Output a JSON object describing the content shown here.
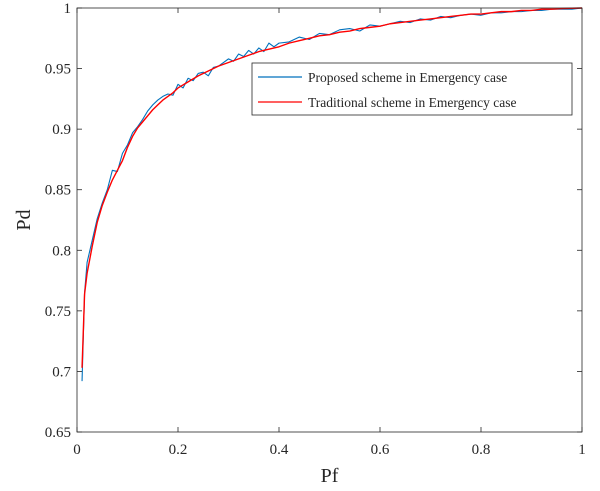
{
  "chart_data": {
    "type": "line",
    "xlabel": "Pf",
    "ylabel": "Pd",
    "xlim": [
      0,
      1
    ],
    "ylim": [
      0.65,
      1
    ],
    "xticks": [
      0,
      0.2,
      0.4,
      0.6,
      0.8,
      1
    ],
    "xtick_labels": [
      "0",
      "0.2",
      "0.4",
      "0.6",
      "0.8",
      "1"
    ],
    "yticks": [
      0.65,
      0.7,
      0.75,
      0.8,
      0.85,
      0.9,
      0.95,
      1
    ],
    "ytick_labels": [
      "0.65",
      "0.7",
      "0.75",
      "0.8",
      "0.85",
      "0.9",
      "0.95",
      "1"
    ],
    "grid": false,
    "legend_position": "top-right",
    "series": [
      {
        "name": "Proposed scheme in Emergency case",
        "color": "#0072BD",
        "x": [
          0.01,
          0.015,
          0.02,
          0.03,
          0.04,
          0.05,
          0.06,
          0.07,
          0.08,
          0.09,
          0.1,
          0.11,
          0.12,
          0.13,
          0.14,
          0.15,
          0.16,
          0.17,
          0.18,
          0.19,
          0.2,
          0.21,
          0.22,
          0.23,
          0.24,
          0.25,
          0.26,
          0.27,
          0.28,
          0.29,
          0.3,
          0.31,
          0.32,
          0.33,
          0.34,
          0.35,
          0.36,
          0.37,
          0.38,
          0.39,
          0.4,
          0.42,
          0.44,
          0.46,
          0.48,
          0.5,
          0.52,
          0.54,
          0.56,
          0.58,
          0.6,
          0.62,
          0.64,
          0.66,
          0.68,
          0.7,
          0.72,
          0.74,
          0.76,
          0.78,
          0.8,
          0.82,
          0.84,
          0.86,
          0.88,
          0.9,
          0.92,
          0.94,
          0.96,
          0.98,
          1.0
        ],
        "y": [
          0.692,
          0.765,
          0.79,
          0.808,
          0.826,
          0.839,
          0.85,
          0.866,
          0.865,
          0.88,
          0.887,
          0.897,
          0.902,
          0.908,
          0.915,
          0.92,
          0.924,
          0.927,
          0.929,
          0.928,
          0.937,
          0.934,
          0.942,
          0.94,
          0.946,
          0.947,
          0.944,
          0.951,
          0.952,
          0.955,
          0.958,
          0.956,
          0.962,
          0.96,
          0.965,
          0.962,
          0.967,
          0.964,
          0.971,
          0.968,
          0.971,
          0.972,
          0.976,
          0.974,
          0.979,
          0.978,
          0.982,
          0.983,
          0.981,
          0.986,
          0.985,
          0.987,
          0.989,
          0.988,
          0.991,
          0.99,
          0.993,
          0.992,
          0.994,
          0.995,
          0.994,
          0.996,
          0.996,
          0.997,
          0.997,
          0.998,
          0.998,
          0.999,
          0.999,
          0.999,
          1.0
        ]
      },
      {
        "name": "Traditional scheme in Emergency case",
        "color": "#FF0000",
        "x": [
          0.01,
          0.015,
          0.02,
          0.03,
          0.04,
          0.05,
          0.06,
          0.07,
          0.08,
          0.09,
          0.1,
          0.11,
          0.12,
          0.13,
          0.14,
          0.15,
          0.16,
          0.17,
          0.18,
          0.19,
          0.2,
          0.22,
          0.24,
          0.26,
          0.28,
          0.3,
          0.32,
          0.34,
          0.36,
          0.38,
          0.4,
          0.42,
          0.44,
          0.46,
          0.48,
          0.5,
          0.52,
          0.54,
          0.56,
          0.58,
          0.6,
          0.62,
          0.64,
          0.66,
          0.68,
          0.7,
          0.72,
          0.74,
          0.76,
          0.78,
          0.8,
          0.82,
          0.84,
          0.86,
          0.88,
          0.9,
          0.92,
          0.94,
          0.96,
          0.98,
          1.0
        ],
        "y": [
          0.703,
          0.764,
          0.781,
          0.803,
          0.823,
          0.837,
          0.848,
          0.858,
          0.866,
          0.874,
          0.885,
          0.894,
          0.901,
          0.906,
          0.911,
          0.916,
          0.92,
          0.924,
          0.927,
          0.93,
          0.934,
          0.939,
          0.944,
          0.948,
          0.952,
          0.955,
          0.958,
          0.961,
          0.964,
          0.966,
          0.968,
          0.971,
          0.973,
          0.975,
          0.977,
          0.978,
          0.98,
          0.981,
          0.983,
          0.984,
          0.985,
          0.987,
          0.988,
          0.989,
          0.99,
          0.991,
          0.992,
          0.993,
          0.994,
          0.995,
          0.995,
          0.996,
          0.997,
          0.997,
          0.998,
          0.998,
          0.999,
          0.999,
          0.9995,
          0.9998,
          1.0
        ]
      }
    ]
  }
}
